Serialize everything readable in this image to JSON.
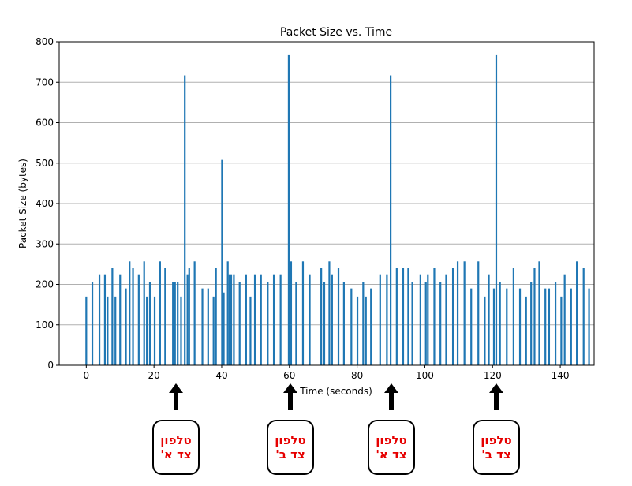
{
  "chart_data": {
    "type": "bar",
    "title": "Packet Size vs. Time",
    "xlabel": "Time (seconds)",
    "ylabel": "Packet Size (bytes)",
    "xlim": [
      -8,
      150
    ],
    "ylim": [
      0,
      800
    ],
    "xticks": [
      0,
      20,
      40,
      60,
      80,
      100,
      120,
      140
    ],
    "yticks": [
      0,
      100,
      200,
      300,
      400,
      500,
      600,
      700,
      800
    ],
    "grid": "horizontal",
    "bar_color": "#1f77b4",
    "x": [
      0,
      1.8,
      3.9,
      5.5,
      6.3,
      7.7,
      8.6,
      10,
      11.7,
      12.8,
      13.8,
      15.5,
      17.1,
      17.9,
      18.8,
      20.2,
      21.8,
      23.3,
      25.6,
      26.2,
      27,
      28,
      29.1,
      29.9,
      30.4,
      32,
      34.3,
      36,
      37.6,
      38.3,
      40.1,
      40.6,
      41.8,
      42.3,
      42.8,
      43.6,
      45.3,
      47.2,
      48.5,
      49.8,
      51.6,
      53.6,
      55.4,
      57.4,
      59.8,
      60.5,
      62,
      64,
      66,
      69.4,
      70.3,
      71.8,
      72.6,
      74.5,
      76.1,
      78.3,
      80.1,
      81.8,
      82.6,
      84.1,
      86.8,
      88.8,
      89.9,
      91.7,
      93.6,
      95.1,
      96.3,
      98.7,
      100.3,
      100.9,
      102.8,
      104.6,
      106.3,
      108.3,
      109.7,
      111.7,
      113.7,
      115.8,
      117.7,
      118.9,
      120.4,
      121.1,
      122.2,
      124.2,
      126.2,
      128.1,
      129.9,
      131.4,
      132.4,
      133.8,
      135.6,
      136.7,
      138.6,
      140.3,
      141.3,
      143.2,
      144.9,
      146.9,
      148.5
    ],
    "values": [
      170,
      205,
      225,
      225,
      170,
      240,
      170,
      225,
      190,
      257,
      240,
      225,
      257,
      170,
      205,
      170,
      257,
      240,
      205,
      205,
      205,
      170,
      717,
      225,
      240,
      257,
      190,
      190,
      170,
      240,
      508,
      180,
      257,
      225,
      225,
      225,
      205,
      225,
      170,
      225,
      225,
      205,
      225,
      225,
      767,
      257,
      205,
      257,
      225,
      240,
      205,
      257,
      225,
      240,
      205,
      190,
      170,
      205,
      170,
      190,
      225,
      225,
      717,
      240,
      240,
      240,
      205,
      225,
      205,
      225,
      240,
      205,
      225,
      240,
      257,
      257,
      190,
      257,
      170,
      225,
      190,
      767,
      205,
      190,
      240,
      190,
      170,
      205,
      240,
      257,
      190,
      190,
      205,
      170,
      225,
      190,
      257,
      240,
      190
    ]
  },
  "callouts": [
    {
      "line1": "טלפון",
      "line2": "צד א'",
      "color": "#e60000"
    },
    {
      "line1": "טלפון",
      "line2": "צד ב'",
      "color": "#e60000"
    },
    {
      "line1": "טלפון",
      "line2": "צד א'",
      "color": "#e60000"
    },
    {
      "line1": "טלפון",
      "line2": "צד ב'",
      "color": "#e60000"
    }
  ]
}
